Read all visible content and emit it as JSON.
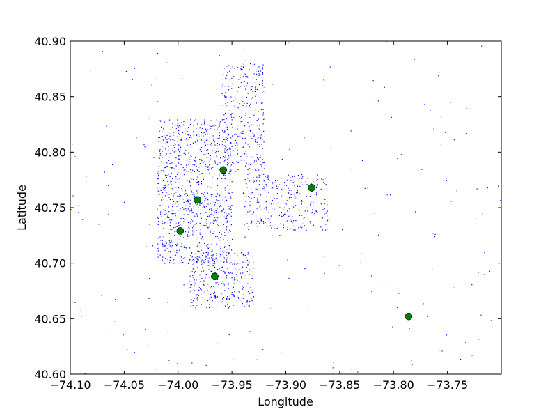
{
  "chart_data": {
    "type": "scatter",
    "title": "",
    "xlabel": "Longitude",
    "ylabel": "Latitude",
    "xlim": [
      -74.1,
      -73.7
    ],
    "ylim": [
      40.6,
      40.9
    ],
    "x_ticks": [
      -74.1,
      -74.05,
      -74.0,
      -73.95,
      -73.9,
      -73.85,
      -73.8,
      -73.75
    ],
    "x_tick_labels": [
      "−74.10",
      "−74.05",
      "−74.00",
      "−73.95",
      "−73.90",
      "−73.85",
      "−73.80",
      "−73.75"
    ],
    "y_ticks": [
      40.6,
      40.65,
      40.7,
      40.75,
      40.8,
      40.85,
      40.9
    ],
    "y_tick_labels": [
      "40.60",
      "40.65",
      "40.70",
      "40.75",
      "40.80",
      "40.85",
      "40.90"
    ],
    "grid": false,
    "legend": "none",
    "colors": {
      "points": "#0000ff",
      "markers": "#008000"
    },
    "series": [
      {
        "marker": "dot",
        "color": "#0000ff",
        "density_regions": [
          {
            "x": [
              -74.02,
              -73.95
            ],
            "y": [
              40.7,
              40.83
            ],
            "weight": 10
          },
          {
            "x": [
              -73.96,
              -73.92
            ],
            "y": [
              40.78,
              40.88
            ],
            "weight": 3
          },
          {
            "x": [
              -73.94,
              -73.86
            ],
            "y": [
              40.73,
              40.78
            ],
            "weight": 3
          },
          {
            "x": [
              -73.99,
              -73.93
            ],
            "y": [
              40.66,
              40.71
            ],
            "weight": 3
          },
          {
            "x": [
              -74.1,
              -73.7
            ],
            "y": [
              40.6,
              40.9
            ],
            "weight": 2
          }
        ]
      },
      {
        "marker": "circle",
        "color": "#008000",
        "points": [
          {
            "x": -73.958,
            "y": 40.784
          },
          {
            "x": -73.982,
            "y": 40.757
          },
          {
            "x": -73.998,
            "y": 40.729
          },
          {
            "x": -73.966,
            "y": 40.688
          },
          {
            "x": -73.876,
            "y": 40.768
          },
          {
            "x": -73.786,
            "y": 40.652
          }
        ]
      }
    ]
  }
}
